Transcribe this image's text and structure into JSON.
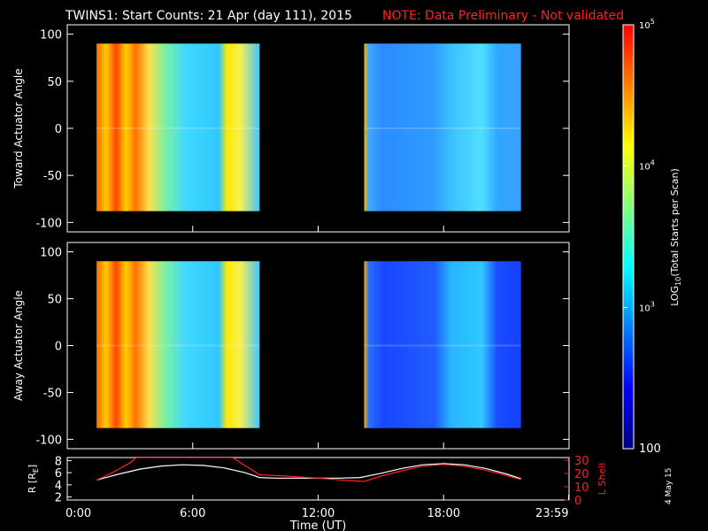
{
  "header": {
    "title": "TWINS1: Start Counts: 21 Apr (day 111), 2015",
    "note": "NOTE: Data Preliminary - Not validated"
  },
  "side_stamp": "4 May 15",
  "colorbar": {
    "label": "LOG10(Total Starts per Scan)",
    "label_main": "LOG",
    "label_sub": "10",
    "label_rest": "(Total Starts per Scan)",
    "range": [
      100,
      100000
    ],
    "scale": "log",
    "tick_labels": [
      "100",
      "10",
      "10",
      "10"
    ],
    "tick_exps": [
      "",
      "3",
      "4",
      "5"
    ],
    "colors": [
      "#000080",
      "#0000ff",
      "#0080ff",
      "#00ffff",
      "#80ff80",
      "#ffff00",
      "#ff8000",
      "#ff0000"
    ]
  },
  "chart_data": [
    {
      "type": "heatmap",
      "panel": "top",
      "ylabel": "Toward Actuator Angle",
      "ylim": [
        -110,
        110
      ],
      "yticks": [
        "100",
        "50",
        "0",
        "-50",
        "-100"
      ],
      "yticks_values": [
        100,
        50,
        0,
        -50,
        -100
      ],
      "xlim": [
        0,
        24
      ],
      "data_y_range": [
        -88,
        90
      ],
      "segments": [
        {
          "start_hour": 1.4,
          "end_hour": 9.2,
          "level": "high"
        },
        {
          "start_hour": 14.2,
          "end_hour": 21.7,
          "level": "medium"
        }
      ]
    },
    {
      "type": "heatmap",
      "panel": "bottom",
      "ylabel": "Away Actuator Angle",
      "ylim": [
        -110,
        110
      ],
      "yticks": [
        "100",
        "50",
        "0",
        "-50",
        "-100"
      ],
      "yticks_values": [
        100,
        50,
        0,
        -50,
        -100
      ],
      "xlim": [
        0,
        24
      ],
      "data_y_range": [
        -88,
        90
      ],
      "segments": [
        {
          "start_hour": 1.4,
          "end_hour": 9.2,
          "level": "high"
        },
        {
          "start_hour": 14.2,
          "end_hour": 21.7,
          "level": "low"
        }
      ]
    },
    {
      "type": "line",
      "panel": "orbit",
      "ylabel_left": "R [R",
      "ylabel_left_sub": "E",
      "ylabel_left_end": "]",
      "ylabel_right": "L Shell",
      "yticks_left": [
        "8",
        "6",
        "4",
        "2"
      ],
      "yticks_left_values": [
        8,
        6,
        4,
        2
      ],
      "yticks_right": [
        "30",
        "20",
        "10",
        "0"
      ],
      "yticks_right_values": [
        30,
        20,
        10,
        0
      ],
      "ylim_left": [
        1.5,
        8.5
      ],
      "ylim_right": [
        0,
        32
      ],
      "xlabel": "Time (UT)",
      "xticks": [
        "0:00",
        "6:00",
        "12:00",
        "18:00",
        "23:59"
      ],
      "xticks_values": [
        0,
        6,
        12,
        18,
        23.98
      ],
      "series": [
        {
          "axis": "left",
          "color": "#ffffff",
          "x": [
            1.4,
            2.5,
            3.5,
            4.5,
            5.5,
            6.5,
            7.5,
            8.5,
            9.2,
            10,
            11,
            12,
            13,
            14,
            15,
            16,
            17,
            18,
            19,
            20,
            21,
            21.7
          ],
          "y": [
            4.8,
            5.8,
            6.6,
            7.1,
            7.3,
            7.2,
            6.8,
            6.0,
            5.2,
            5.1,
            5.1,
            5.1,
            5.1,
            5.2,
            5.9,
            6.7,
            7.3,
            7.5,
            7.3,
            6.7,
            5.8,
            5.0
          ]
        },
        {
          "axis": "right",
          "color": "#ff2020",
          "x": [
            1.4,
            2.2,
            3.0,
            3.3,
            7.9,
            8.3,
            9.2,
            10.5,
            12.0,
            13.2,
            14.2,
            15.0,
            16.0,
            17.0,
            18.0,
            19.0,
            20.0,
            21.0,
            21.7
          ],
          "y": [
            15.0,
            21.0,
            28.0,
            32.0,
            32.0,
            28.0,
            19.0,
            18.0,
            16.5,
            15.0,
            14.0,
            18.0,
            22.0,
            25.5,
            26.8,
            25.5,
            22.5,
            18.5,
            15.5
          ]
        }
      ]
    }
  ]
}
